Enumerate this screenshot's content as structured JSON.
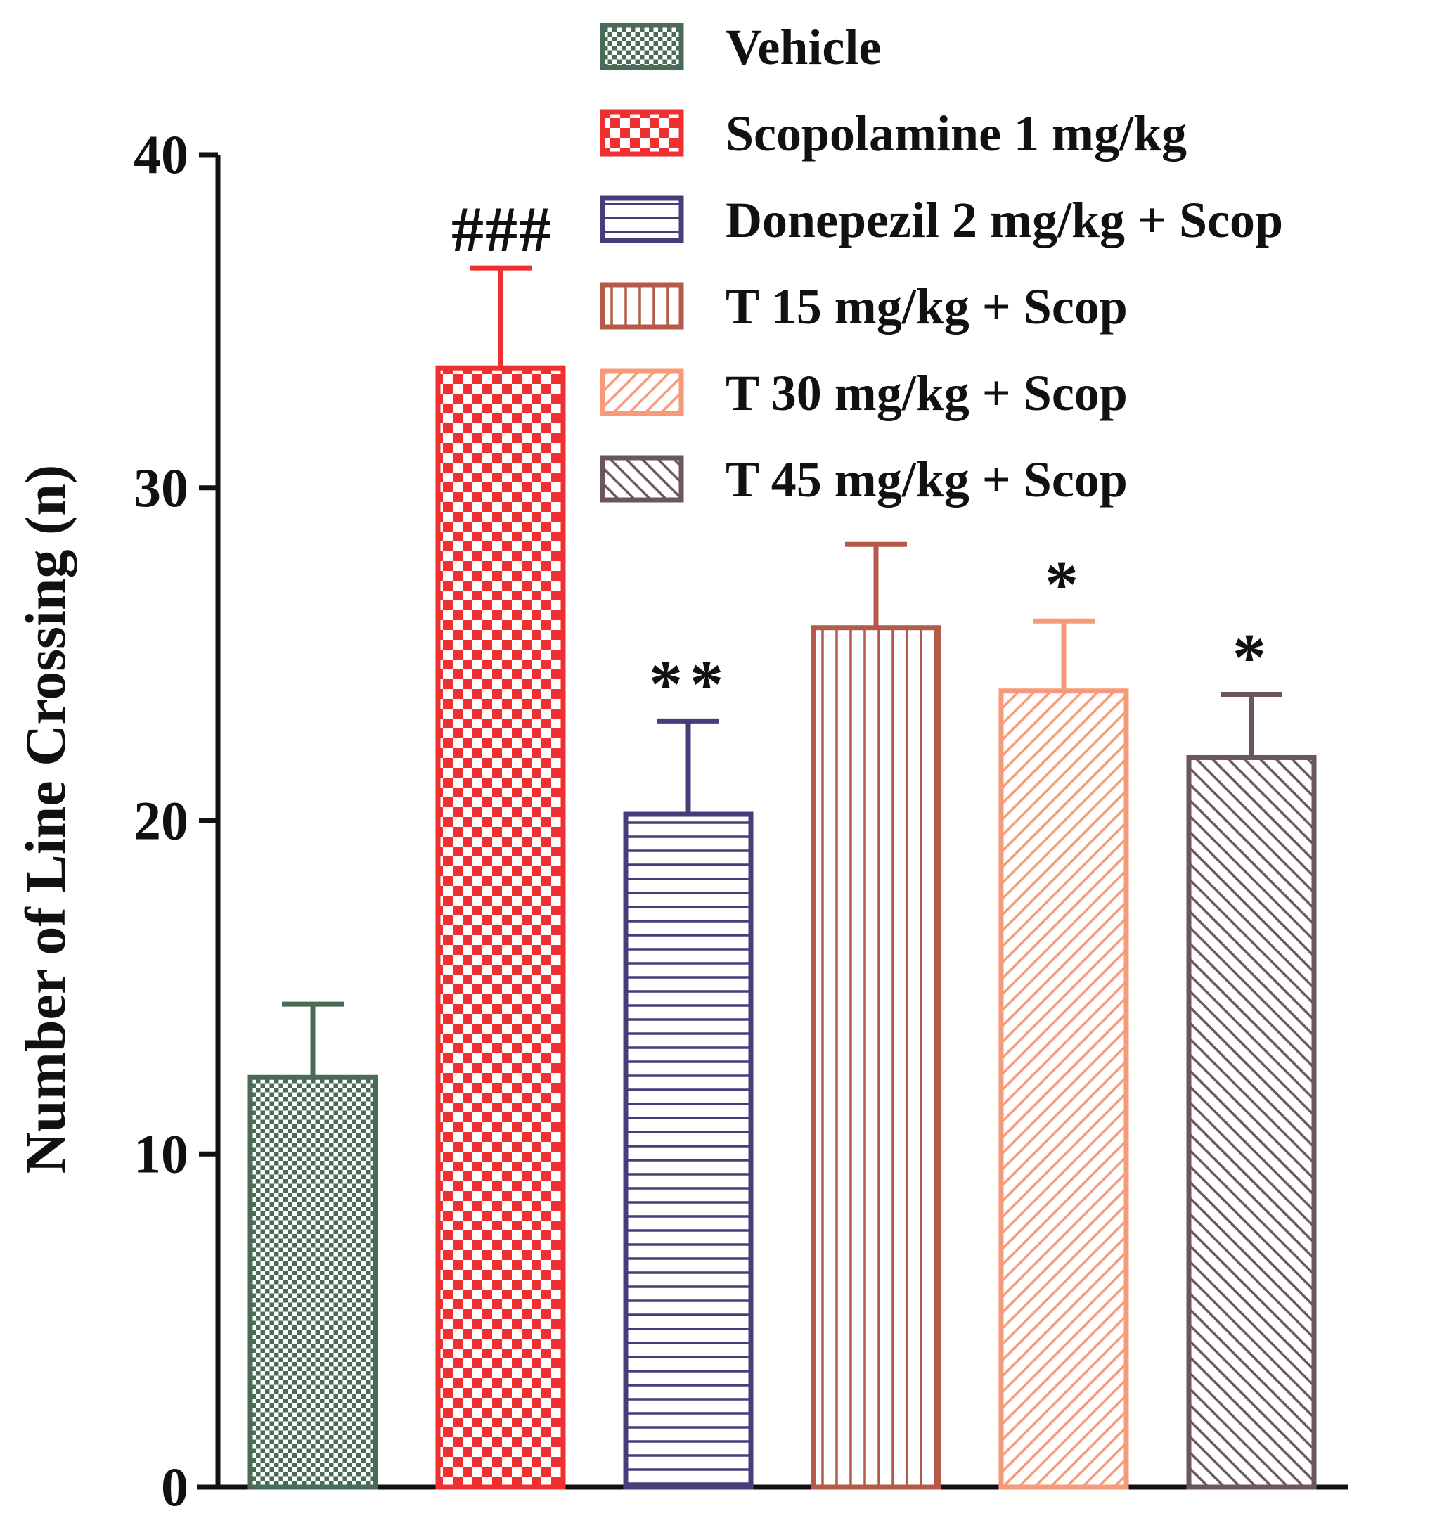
{
  "chart_data": {
    "type": "bar",
    "title": "",
    "xlabel": "",
    "ylabel": "Number of Line Crossing (n)",
    "ylim": [
      0,
      40
    ],
    "yticks": [
      "0",
      "10",
      "20",
      "30",
      "40"
    ],
    "legend_position": "top-right",
    "series": [
      {
        "name": "Vehicle",
        "value": 12.3,
        "error": 2.2,
        "annotation": "",
        "color": "#4a6b58",
        "pattern": "small-checker"
      },
      {
        "name": "Scopolamine 1 mg/kg",
        "value": 33.6,
        "error": 3.0,
        "annotation": "###",
        "color": "#f03030",
        "pattern": "large-checker"
      },
      {
        "name": "Donepezil 2 mg/kg + Scop",
        "value": 20.2,
        "error": 2.8,
        "annotation": "**",
        "color": "#4a3b7a",
        "pattern": "horizontal-lines"
      },
      {
        "name": "T 15 mg/kg + Scop",
        "value": 25.8,
        "error": 2.5,
        "annotation": "",
        "color": "#b45a48",
        "pattern": "vertical-lines"
      },
      {
        "name": "T 30 mg/kg + Scop",
        "value": 23.9,
        "error": 2.1,
        "annotation": "*",
        "color": "#f69a7a",
        "pattern": "diagonal-up"
      },
      {
        "name": "T 45 mg/kg + Scop",
        "value": 21.9,
        "error": 1.9,
        "annotation": "*",
        "color": "#6b5560",
        "pattern": "diagonal-down"
      }
    ]
  }
}
